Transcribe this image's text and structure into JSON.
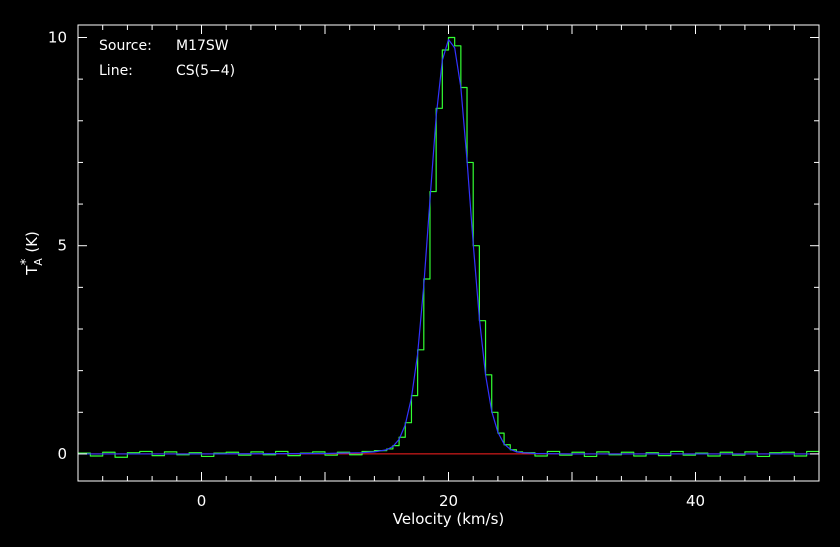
{
  "chart_data": {
    "type": "line",
    "title": "",
    "xlabel": "Velocity (km/s)",
    "ylabel": "T",
    "ylabel_sub": "A",
    "ylabel_sup": "*",
    "ylabel_unit": "(K)",
    "xlim": [
      -10,
      50
    ],
    "ylim": [
      -0.65,
      10.3
    ],
    "xticks": [
      0,
      20,
      40
    ],
    "xtick_labels": [
      "0",
      "20",
      "40"
    ],
    "yticks": [
      0,
      5,
      10
    ],
    "ytick_labels": [
      "0",
      "5",
      "10"
    ],
    "grid": false,
    "legend": "none",
    "annotations": {
      "source_label": "Source:",
      "source_value": "M17SW",
      "line_label": "Line:",
      "line_value": "CS(5−4)"
    },
    "colors": {
      "background": "#000000",
      "axes": "#ffffff",
      "observed": "#33ff33",
      "fit": "#3333ff",
      "baseline": "#ff2020"
    },
    "baseline_value": 0,
    "series": [
      {
        "key": "observed",
        "style": "step",
        "x": [
          -10,
          -9,
          -8,
          -7,
          -6,
          -5,
          -4,
          -3,
          -2,
          -1,
          0,
          1,
          2,
          3,
          4,
          5,
          6,
          7,
          8,
          9,
          10,
          11,
          12,
          13,
          14,
          15,
          15.5,
          16,
          16.5,
          17,
          17.5,
          18,
          18.5,
          19,
          19.5,
          20,
          20.5,
          21,
          21.5,
          22,
          22.5,
          23,
          23.5,
          24,
          24.5,
          25,
          25.5,
          26,
          27,
          28,
          29,
          30,
          31,
          32,
          33,
          34,
          35,
          36,
          37,
          38,
          39,
          40,
          41,
          42,
          43,
          44,
          45,
          46,
          47,
          48,
          49,
          50
        ],
        "y": [
          0.02,
          -0.05,
          0.04,
          -0.08,
          0.03,
          0.06,
          -0.04,
          0.05,
          -0.02,
          0.03,
          -0.06,
          0.02,
          0.04,
          -0.03,
          0.05,
          -0.02,
          0.06,
          -0.04,
          0.02,
          0.05,
          -0.03,
          0.04,
          -0.02,
          0.06,
          0.08,
          0.12,
          0.2,
          0.4,
          0.75,
          1.4,
          2.5,
          4.2,
          6.3,
          8.3,
          9.7,
          10.0,
          9.8,
          8.8,
          7.0,
          5.0,
          3.2,
          1.9,
          1.0,
          0.5,
          0.22,
          0.1,
          0.05,
          0.03,
          -0.05,
          0.06,
          -0.03,
          0.04,
          -0.06,
          0.05,
          -0.02,
          0.04,
          -0.05,
          0.03,
          -0.04,
          0.06,
          -0.03,
          0.02,
          -0.05,
          0.04,
          -0.03,
          0.05,
          -0.06,
          0.03,
          0.04,
          -0.05,
          0.06,
          0.02
        ]
      },
      {
        "key": "fit",
        "style": "line",
        "x": [
          -10,
          0,
          10,
          13,
          14,
          15,
          15.5,
          16,
          16.5,
          17,
          17.5,
          18,
          18.5,
          19,
          19.5,
          20,
          20.5,
          21,
          21.5,
          22,
          22.5,
          23,
          23.5,
          24,
          24.5,
          25,
          25.5,
          26,
          27,
          30,
          40,
          50
        ],
        "y": [
          0,
          0,
          0.01,
          0.03,
          0.05,
          0.1,
          0.18,
          0.35,
          0.7,
          1.35,
          2.4,
          4.05,
          6.1,
          8.1,
          9.45,
          9.95,
          9.75,
          8.8,
          7.05,
          5.05,
          3.25,
          1.9,
          1.02,
          0.52,
          0.24,
          0.11,
          0.05,
          0.03,
          0.01,
          0,
          0,
          0
        ]
      }
    ]
  }
}
